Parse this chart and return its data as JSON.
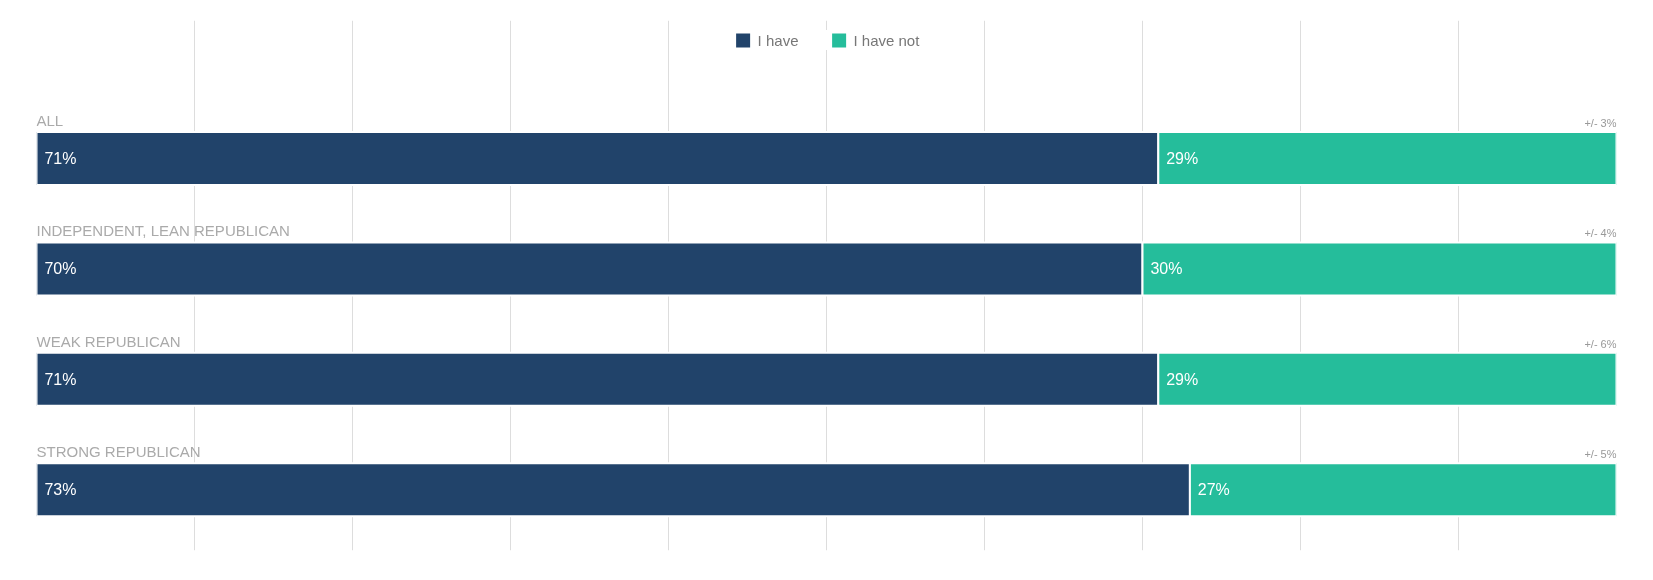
{
  "chart_data": {
    "type": "bar",
    "orientation": "horizontal",
    "stacked": true,
    "categories": [
      "ALL",
      "INDEPENDENT, LEAN REPUBLICAN",
      "WEAK REPUBLICAN",
      "STRONG REPUBLICAN"
    ],
    "series": [
      {
        "name": "I have",
        "color": "#21436a",
        "values": [
          71,
          70,
          71,
          73
        ],
        "value_labels": [
          "71%",
          "70%",
          "71%",
          "73%"
        ]
      },
      {
        "name": "I have not",
        "color": "#25bd9b",
        "values": [
          29,
          30,
          29,
          27
        ],
        "value_labels": [
          "29%",
          "30%",
          "29%",
          "27%"
        ]
      }
    ],
    "annotations": [
      "+/- 3%",
      "+/- 4%",
      "+/- 6%",
      "+/- 5%"
    ],
    "xlim": [
      0,
      100
    ],
    "tick_labels": false,
    "grid": "x",
    "legend": "top"
  }
}
